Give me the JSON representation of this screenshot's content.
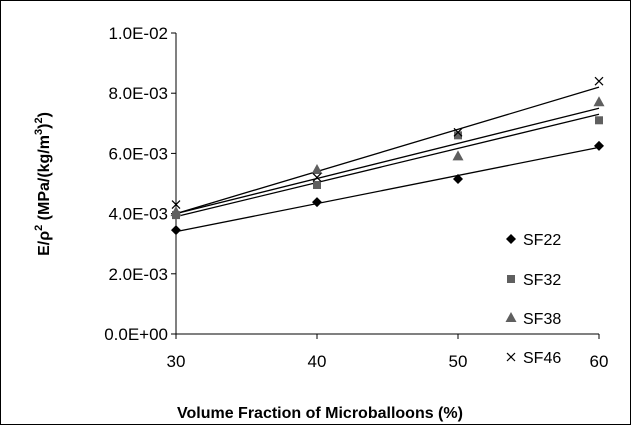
{
  "chart_data": {
    "type": "scatter",
    "xlabel": "Volume Fraction of Microballoons (%)",
    "ylabel": {
      "prefix": "E/ρ",
      "sup1": "2",
      "mid": " (MPa/(kg/m",
      "sup2": "3",
      "mid2": ")",
      "sup3": "2",
      "suffix": ")"
    },
    "x_ticks": [
      "30",
      "40",
      "50",
      "60"
    ],
    "y_ticks": [
      "0.0E+00",
      "2.0E-03",
      "4.0E-03",
      "6.0E-03",
      "8.0E-03",
      "1.0E-02"
    ],
    "xlim": [
      30,
      60
    ],
    "ylim": [
      0,
      0.01
    ],
    "grid": false,
    "legend_position": "right",
    "series": [
      {
        "name": "SF22",
        "marker": "diamond",
        "x": [
          30,
          40,
          50,
          60
        ],
        "y": [
          0.00345,
          0.00438,
          0.00515,
          0.00625
        ],
        "trend": [
          0.0034,
          0.0062
        ]
      },
      {
        "name": "SF32",
        "marker": "square",
        "x": [
          30,
          40,
          50,
          60
        ],
        "y": [
          0.00395,
          0.00495,
          0.0066,
          0.0071
        ],
        "trend": [
          0.0039,
          0.0073
        ]
      },
      {
        "name": "SF38",
        "marker": "triangle",
        "x": [
          30,
          40,
          50,
          60
        ],
        "y": [
          0.00405,
          0.00545,
          0.0059,
          0.0077
        ],
        "trend": [
          0.004,
          0.0075
        ]
      },
      {
        "name": "SF46",
        "marker": "x",
        "x": [
          30,
          40,
          50,
          60
        ],
        "y": [
          0.0043,
          0.0052,
          0.0067,
          0.0084
        ],
        "trend": [
          0.004,
          0.0082
        ]
      }
    ]
  },
  "colors": {
    "SF22": "#000000",
    "SF32": "#5f5f5f",
    "SF38": "#5f5f5f",
    "SF46": "#000000",
    "axis": "#000000",
    "trend": "#000000"
  }
}
